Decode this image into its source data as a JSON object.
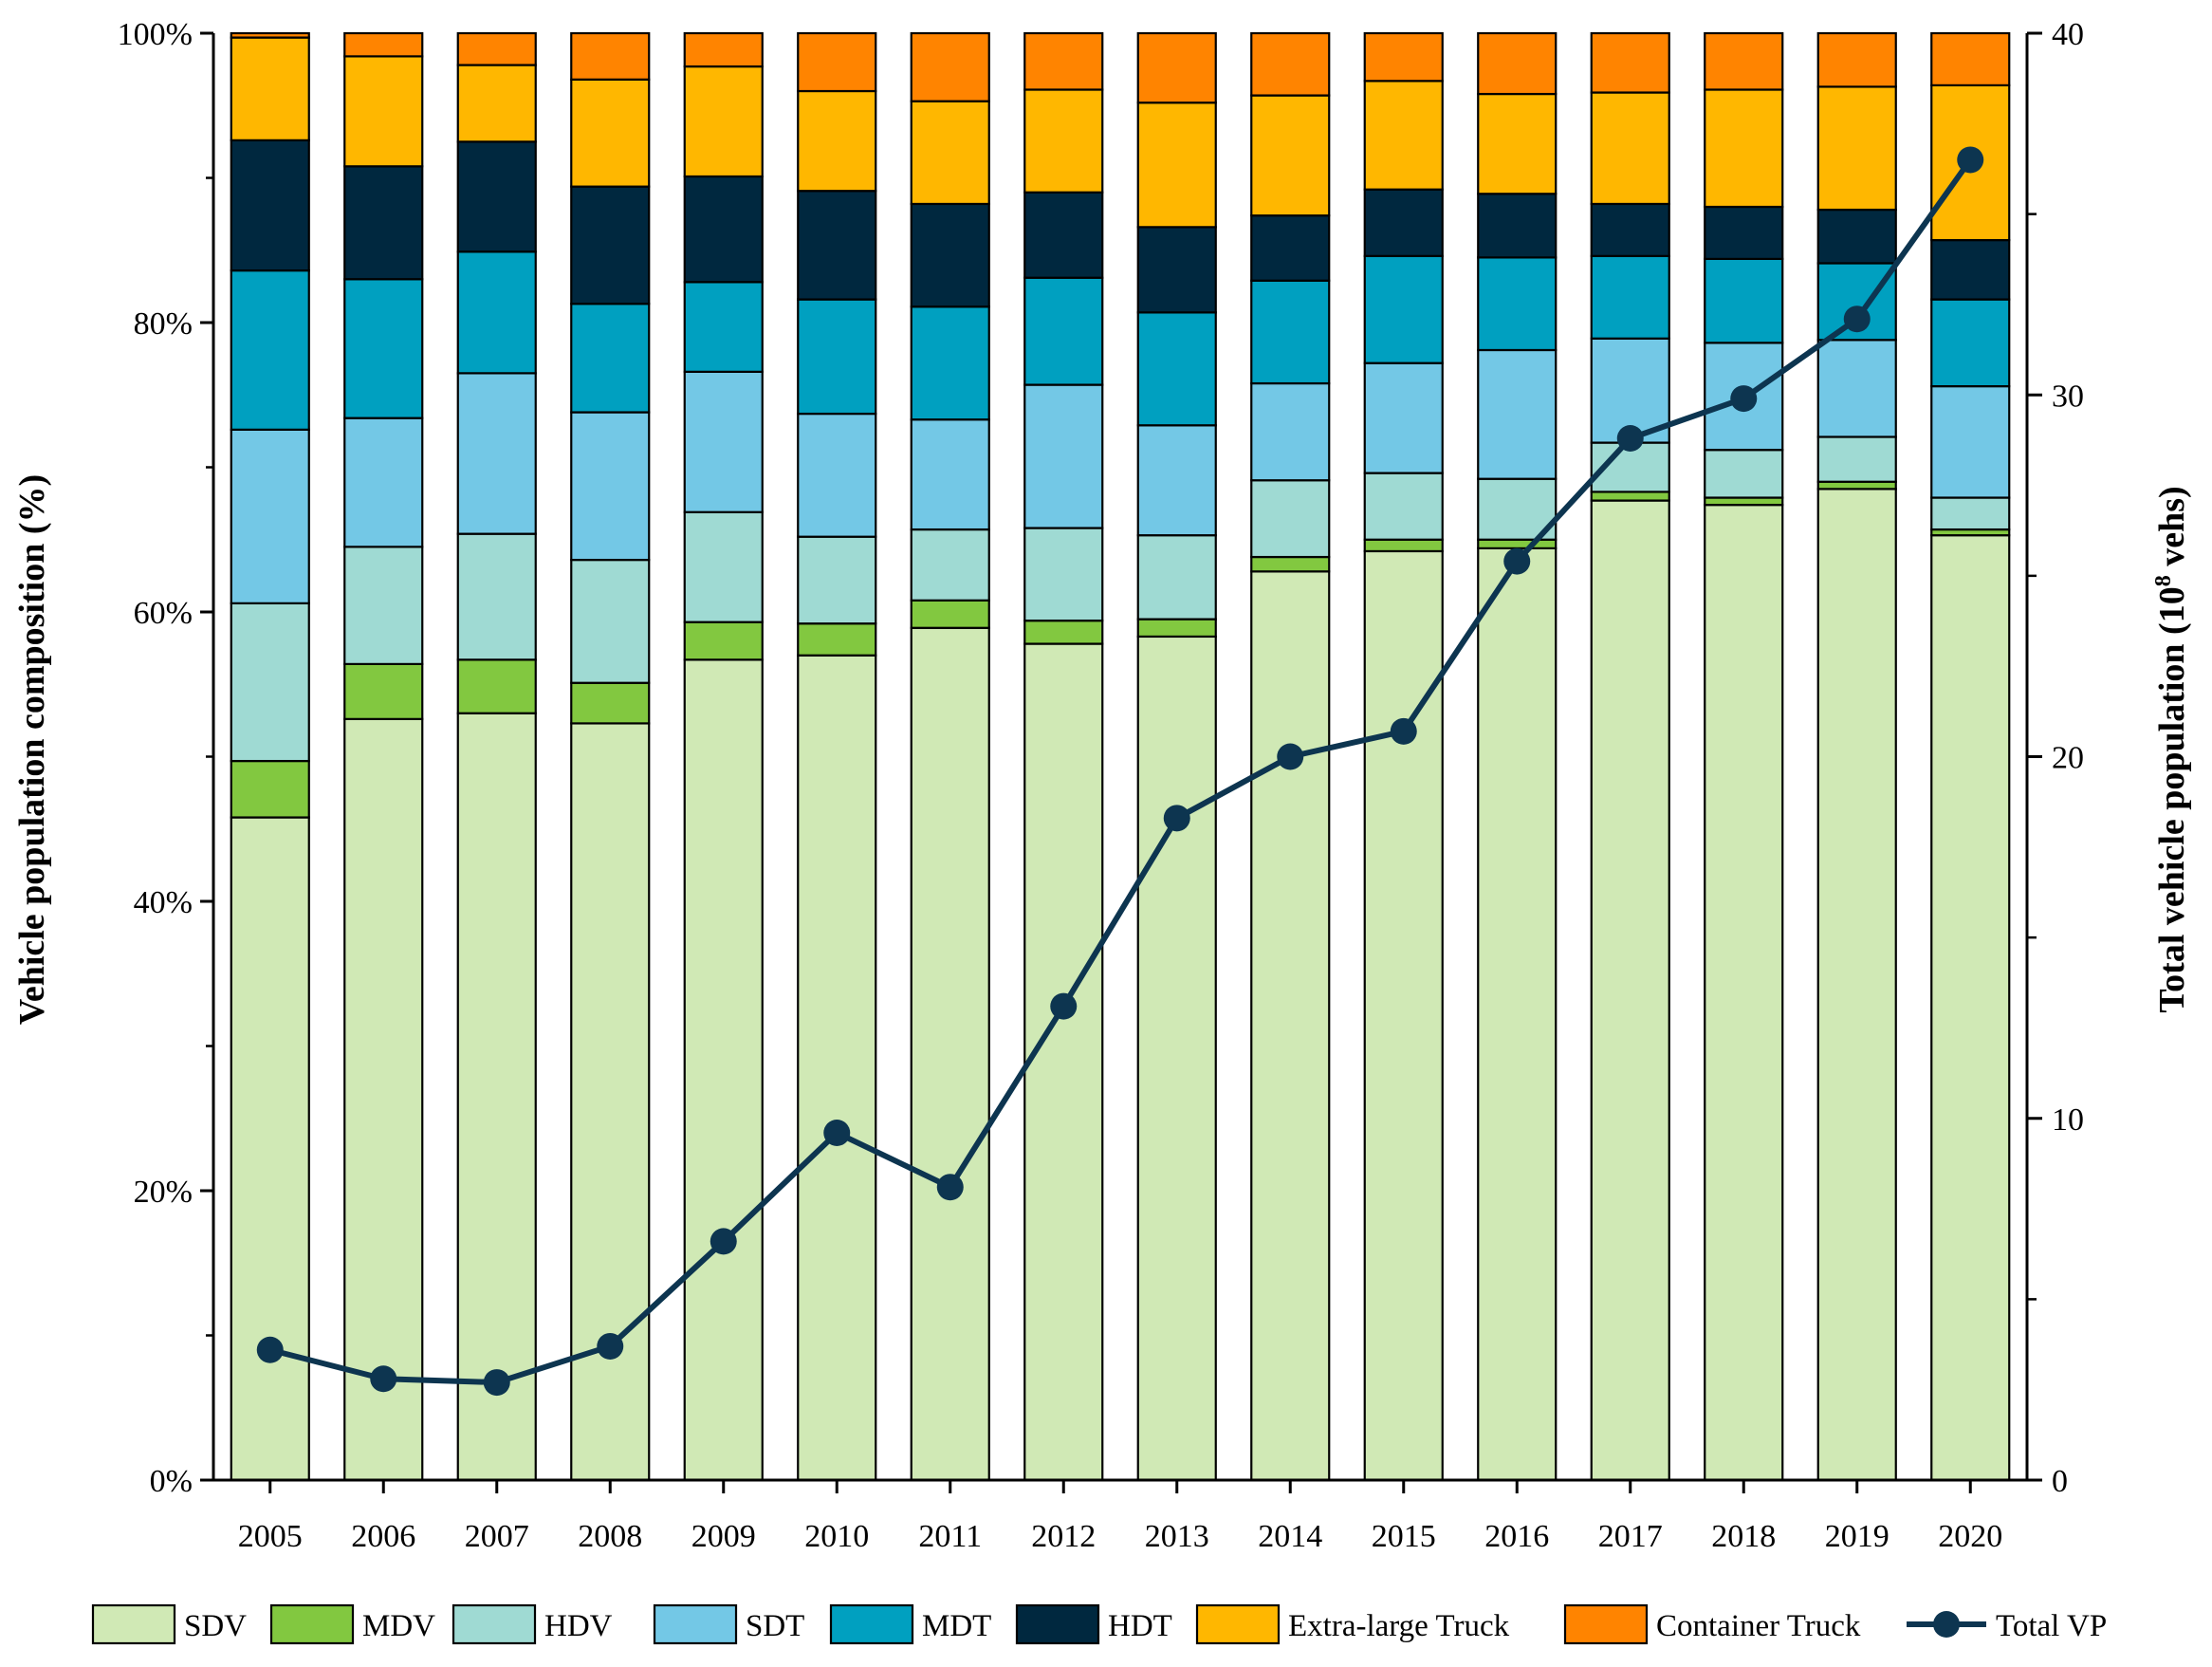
{
  "chart_data": {
    "type": "bar",
    "stacked": true,
    "title": "",
    "xlabel": "",
    "ylabel": "Vehicle population composition (%)",
    "ylabel_right_main": "Total vehicle population (10",
    "ylabel_right_sup": "8",
    "ylabel_right_tail": " vehs)",
    "ylim": [
      0,
      100
    ],
    "y_ticks": [
      "0%",
      "20%",
      "40%",
      "60%",
      "80%",
      "100%"
    ],
    "y_tick_values": [
      0,
      20,
      40,
      60,
      80,
      100
    ],
    "y2lim": [
      0,
      40
    ],
    "y2_ticks": [
      "0",
      "10",
      "20",
      "30",
      "40"
    ],
    "y2_tick_values": [
      0,
      10,
      20,
      30,
      40
    ],
    "legend_position": "bottom",
    "categories": [
      "2005",
      "2006",
      "2007",
      "2008",
      "2009",
      "2010",
      "2011",
      "2012",
      "2013",
      "2014",
      "2015",
      "2016",
      "2017",
      "2018",
      "2019",
      "2020"
    ],
    "series": [
      {
        "name": "SDV",
        "color": "#d0e9b5",
        "values": [
          45.8,
          52.6,
          53.0,
          52.3,
          56.7,
          57.0,
          58.9,
          57.8,
          58.3,
          62.8,
          64.2,
          64.4,
          67.7,
          67.4,
          68.5,
          65.3
        ]
      },
      {
        "name": "MDV",
        "color": "#82c840",
        "values": [
          3.9,
          3.8,
          3.7,
          2.8,
          2.6,
          2.2,
          1.9,
          1.6,
          1.2,
          1.0,
          0.8,
          0.6,
          0.6,
          0.5,
          0.5,
          0.4
        ]
      },
      {
        "name": "HDV",
        "color": "#9fdad3",
        "values": [
          10.9,
          8.1,
          8.7,
          8.5,
          7.6,
          6.0,
          4.9,
          6.4,
          5.8,
          5.3,
          4.6,
          4.2,
          3.4,
          3.3,
          3.1,
          2.2
        ]
      },
      {
        "name": "SDT",
        "color": "#73c8e6",
        "values": [
          12.0,
          8.9,
          11.1,
          10.2,
          9.7,
          8.5,
          7.6,
          9.9,
          7.6,
          6.7,
          7.6,
          8.9,
          7.2,
          7.4,
          6.7,
          7.7
        ]
      },
      {
        "name": "MDT",
        "color": "#00a0c0",
        "values": [
          11.0,
          9.6,
          8.4,
          7.5,
          6.2,
          7.9,
          7.8,
          7.4,
          7.8,
          7.1,
          7.4,
          6.4,
          5.7,
          5.8,
          5.3,
          6.0
        ]
      },
      {
        "name": "HDT",
        "color": "#00283f",
        "values": [
          9.0,
          7.8,
          7.6,
          8.1,
          7.3,
          7.5,
          7.1,
          5.9,
          5.9,
          4.5,
          4.6,
          4.4,
          3.6,
          3.6,
          3.7,
          4.1
        ]
      },
      {
        "name": "Extra-large Truck",
        "color": "#ffb700",
        "values": [
          7.1,
          7.6,
          5.3,
          7.4,
          7.6,
          6.9,
          7.1,
          7.1,
          8.6,
          8.3,
          7.5,
          6.9,
          7.7,
          8.1,
          8.5,
          10.7
        ]
      },
      {
        "name": "Container Truck",
        "color": "#ff8400",
        "values": [
          0.3,
          1.6,
          2.2,
          3.2,
          2.3,
          4.0,
          4.7,
          3.9,
          4.8,
          4.3,
          3.3,
          4.2,
          4.1,
          3.9,
          3.7,
          3.6
        ]
      }
    ],
    "line_series": {
      "name": "Total VP",
      "color": "#0d3550",
      "axis": "right",
      "values": [
        3.6,
        2.8,
        2.7,
        3.7,
        6.6,
        9.6,
        8.1,
        13.1,
        18.3,
        20.0,
        20.7,
        25.4,
        28.8,
        29.9,
        32.1,
        36.5
      ]
    }
  }
}
